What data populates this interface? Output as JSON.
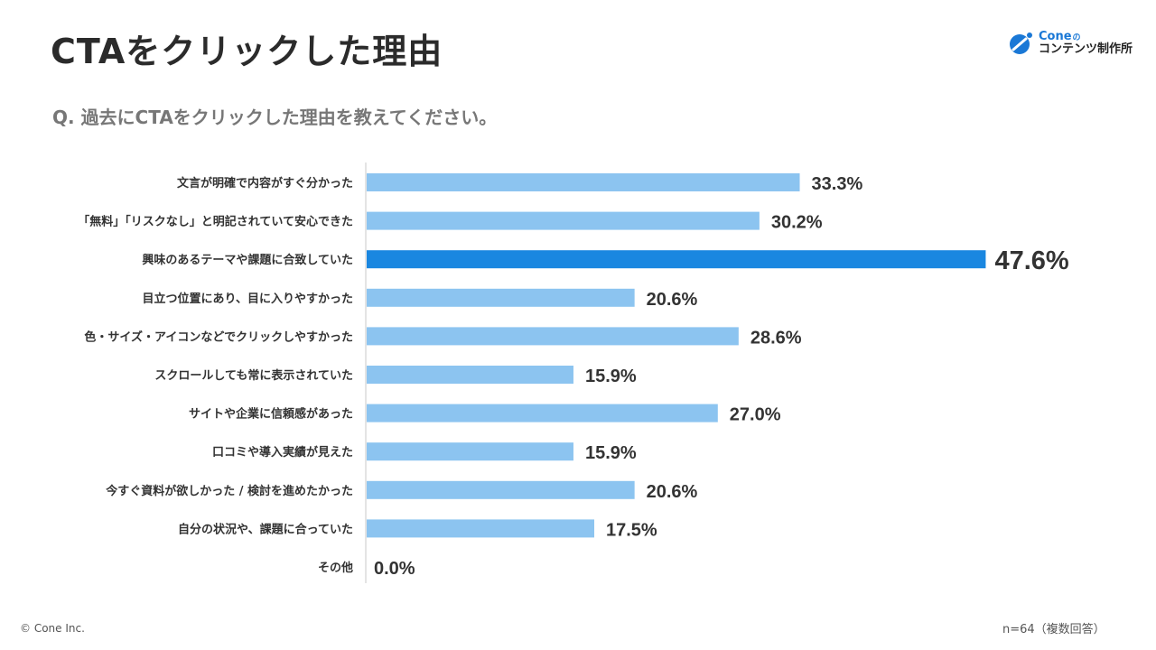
{
  "header": {
    "title": "CTAをクリックした理由",
    "question": "Q. 過去にCTAをクリックした理由を教えてください。"
  },
  "logo": {
    "brand": "Cone",
    "particle": "の",
    "subtitle": "コンテンツ制作所"
  },
  "footer": {
    "copyright": "© Cone Inc.",
    "note": "n=64（複数回答）"
  },
  "colors": {
    "bar": "#8CC4F0",
    "highlight": "#1A87E0",
    "axis": "#C8C8C8"
  },
  "chart_data": {
    "type": "bar",
    "orientation": "horizontal",
    "title": "CTAをクリックした理由",
    "xlabel": "",
    "ylabel": "",
    "xlim": [
      0,
      50
    ],
    "unit": "%",
    "grid": false,
    "categories": [
      "文言が明確で内容がすぐ分かった",
      "「無料」「リスクなし」と明記されていて安心できた",
      "興味のあるテーマや課題に合致していた",
      "目立つ位置にあり、目に入りやすかった",
      "色・サイズ・アイコンなどでクリックしやすかった",
      "スクロールしても常に表示されていた",
      "サイトや企業に信頼感があった",
      "口コミや導入実績が見えた",
      "今すぐ資料が欲しかった / 検討を進めたかった",
      "自分の状況や、課題に合っていた",
      "その他"
    ],
    "values": [
      33.3,
      30.2,
      47.6,
      20.6,
      28.6,
      15.9,
      27.0,
      15.9,
      20.6,
      17.5,
      0.0
    ],
    "labels": [
      "33.3%",
      "30.2%",
      "47.6%",
      "20.6%",
      "28.6%",
      "15.9%",
      "27.0%",
      "15.9%",
      "20.6%",
      "17.5%",
      "0.0%"
    ],
    "highlight_index": 2
  }
}
